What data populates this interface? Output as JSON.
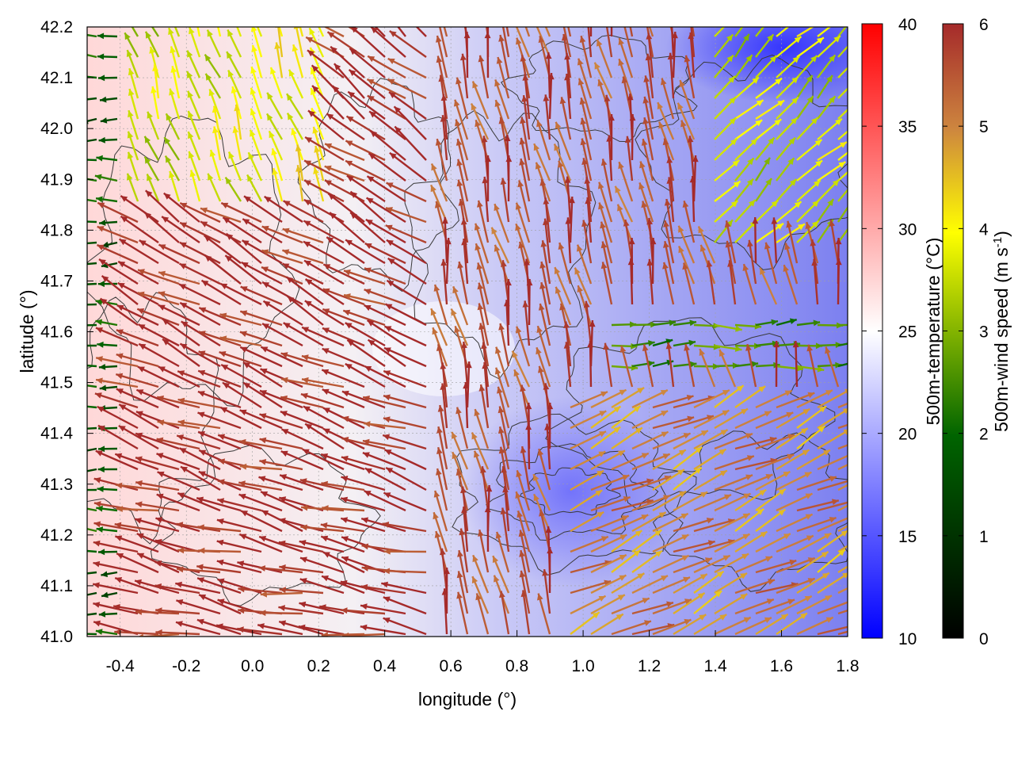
{
  "chart_data": {
    "type": "vector-field-heatmap",
    "xlabel": "longitude (°)",
    "ylabel": "latitude (°)",
    "xlim": [
      -0.5,
      1.8
    ],
    "ylim": [
      41.0,
      42.2
    ],
    "x_ticks": [
      "-0.4",
      "-0.2",
      "0.0",
      "0.2",
      "0.4",
      "0.6",
      "0.8",
      "1.0",
      "1.2",
      "1.4",
      "1.6",
      "1.8"
    ],
    "y_ticks": [
      "41.0",
      "41.1",
      "41.2",
      "41.3",
      "41.4",
      "41.5",
      "41.6",
      "41.7",
      "41.8",
      "41.9",
      "42.0",
      "42.1",
      "42.2"
    ],
    "grid": true,
    "temperature_colorbar": {
      "label": "500m-temperature (°C)",
      "range": [
        10,
        40
      ],
      "ticks": [
        "10",
        "15",
        "20",
        "25",
        "30",
        "35",
        "40"
      ],
      "colors": [
        "#0000ff",
        "#ffffff",
        "#ff0000"
      ]
    },
    "wind_colorbar": {
      "label": "500m-wind speed (m s-1)",
      "label_main": "500m-wind speed (m s",
      "label_sup": "-1",
      "label_end": ")",
      "range": [
        0,
        6
      ],
      "ticks": [
        "0",
        "1",
        "2",
        "3",
        "4",
        "5",
        "6"
      ],
      "colors": [
        "#000000",
        "#006400",
        "#ffff00",
        "#cd853f",
        "#a52a2a"
      ]
    },
    "wind_regions": [
      {
        "region": "west coast",
        "speed": 2.0,
        "direction": "westward"
      },
      {
        "region": "north-west",
        "speed": 3.5,
        "direction": "northward"
      },
      {
        "region": "central band",
        "speed": 6.0,
        "direction": "north-westward"
      },
      {
        "region": "south-west",
        "speed": 6.0,
        "direction": "westward"
      },
      {
        "region": "south-east",
        "speed": 5.0,
        "direction": "north-eastward"
      },
      {
        "region": "east-central",
        "speed": 2.5,
        "direction": "eastward"
      },
      {
        "region": "north-east",
        "speed": 3.5,
        "direction": "north-eastward"
      }
    ],
    "temperature_regions": [
      {
        "region": "west",
        "temperature": 29
      },
      {
        "region": "center",
        "temperature": 24
      },
      {
        "region": "east",
        "temperature": 17
      },
      {
        "region": "north-east corner",
        "temperature": 12
      }
    ]
  }
}
